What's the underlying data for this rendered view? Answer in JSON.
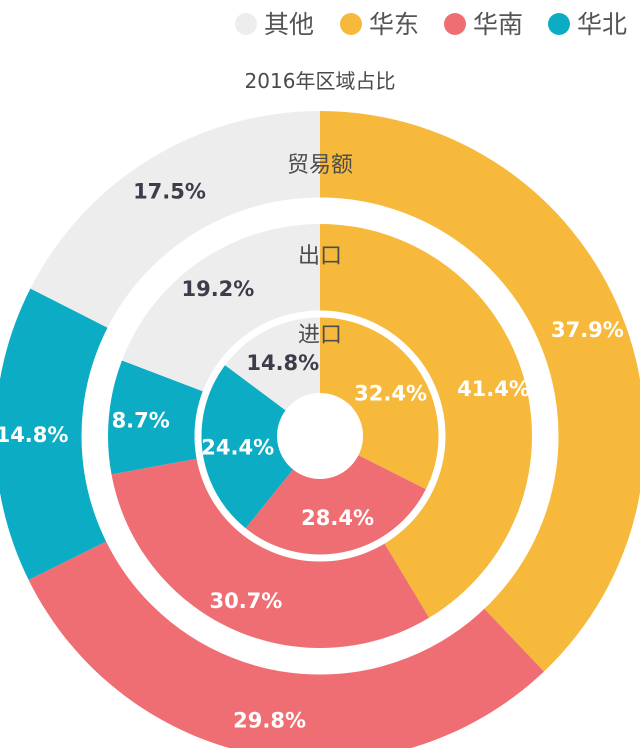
{
  "chart_data": {
    "type": "pie",
    "title": "2016年区域占比",
    "legend_position": "top-right",
    "categories": [
      "其他",
      "华东",
      "华南",
      "华北"
    ],
    "colors": [
      "#ecedec",
      "#f7b93b",
      "#ee6e73",
      "#0cadc4"
    ],
    "series": [
      {
        "name": "贸易额",
        "values": [
          17.5,
          37.9,
          29.8,
          14.8
        ],
        "labels": [
          "17.5%",
          "37.9%",
          "29.8%",
          "14.8%"
        ]
      },
      {
        "name": "出口",
        "values": [
          19.2,
          41.4,
          30.7,
          8.7
        ],
        "labels": [
          "19.2%",
          "41.4%",
          "30.7%",
          "8.7%"
        ]
      },
      {
        "name": "进口",
        "values": [
          14.8,
          32.4,
          28.4,
          24.4
        ],
        "labels": [
          "14.8%",
          "32.4%",
          "28.4%",
          "24.4%"
        ]
      }
    ]
  }
}
